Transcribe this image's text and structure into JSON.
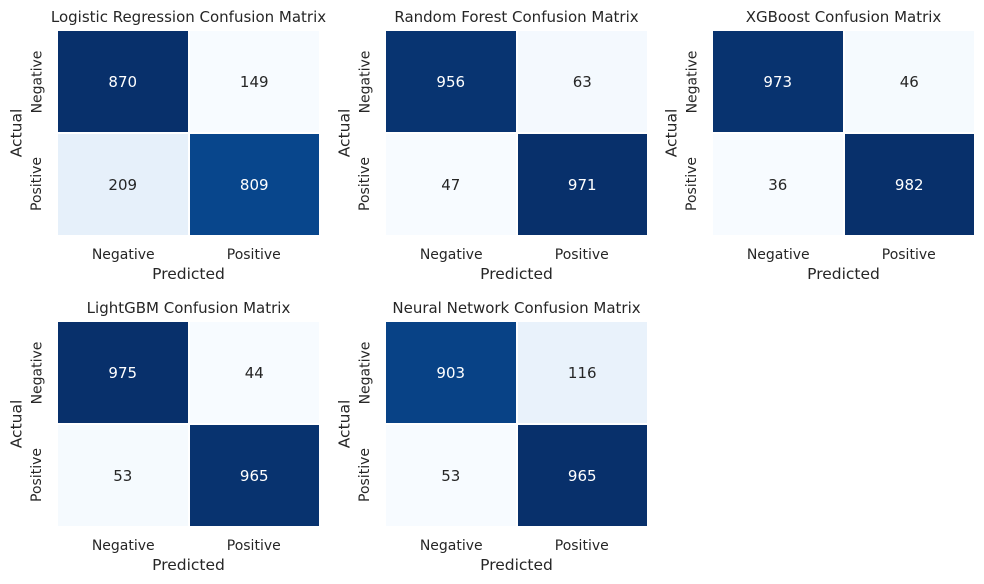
{
  "colormap": {
    "name": "Blues",
    "low": "#f7fbff",
    "high": "#08306b"
  },
  "chart_data": [
    {
      "type": "heatmap",
      "title": "Logistic Regression Confusion Matrix",
      "xlabel": "Predicted",
      "ylabel": "Actual",
      "x_ticks": [
        "Negative",
        "Positive"
      ],
      "y_ticks": [
        "Negative",
        "Positive"
      ],
      "matrix": [
        [
          870,
          149
        ],
        [
          209,
          809
        ]
      ]
    },
    {
      "type": "heatmap",
      "title": "Random Forest Confusion Matrix",
      "xlabel": "Predicted",
      "ylabel": "Actual",
      "x_ticks": [
        "Negative",
        "Positive"
      ],
      "y_ticks": [
        "Negative",
        "Positive"
      ],
      "matrix": [
        [
          956,
          63
        ],
        [
          47,
          971
        ]
      ]
    },
    {
      "type": "heatmap",
      "title": "XGBoost Confusion Matrix",
      "xlabel": "Predicted",
      "ylabel": "Actual",
      "x_ticks": [
        "Negative",
        "Positive"
      ],
      "y_ticks": [
        "Negative",
        "Positive"
      ],
      "matrix": [
        [
          973,
          46
        ],
        [
          36,
          982
        ]
      ]
    },
    {
      "type": "heatmap",
      "title": "LightGBM Confusion Matrix",
      "xlabel": "Predicted",
      "ylabel": "Actual",
      "x_ticks": [
        "Negative",
        "Positive"
      ],
      "y_ticks": [
        "Negative",
        "Positive"
      ],
      "matrix": [
        [
          975,
          44
        ],
        [
          53,
          965
        ]
      ]
    },
    {
      "type": "heatmap",
      "title": "Neural Network Confusion Matrix",
      "xlabel": "Predicted",
      "ylabel": "Actual",
      "x_ticks": [
        "Negative",
        "Positive"
      ],
      "y_ticks": [
        "Negative",
        "Positive"
      ],
      "matrix": [
        [
          903,
          116
        ],
        [
          53,
          965
        ]
      ]
    }
  ]
}
